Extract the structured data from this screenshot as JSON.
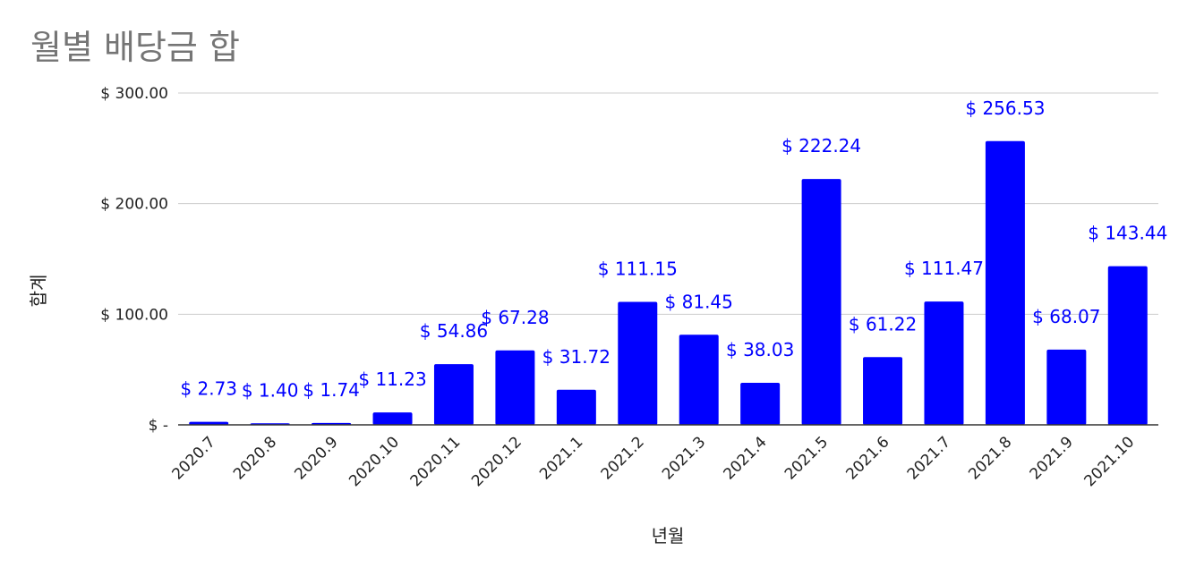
{
  "chart_data": {
    "type": "bar",
    "title": "월별 배당금 합",
    "xlabel": "년월",
    "ylabel": "합계",
    "categories": [
      "2020.7",
      "2020.8",
      "2020.9",
      "2020.10",
      "2020.11",
      "2020.12",
      "2021.1",
      "2021.2",
      "2021.3",
      "2021.4",
      "2021.5",
      "2021.6",
      "2021.7",
      "2021.8",
      "2021.9",
      "2021.10"
    ],
    "values": [
      2.73,
      1.4,
      1.74,
      11.23,
      54.86,
      67.28,
      31.72,
      111.15,
      81.45,
      38.03,
      222.24,
      61.22,
      111.47,
      256.53,
      68.07,
      143.44
    ],
    "data_labels": [
      "$ 2.73",
      "$ 1.40",
      "$ 1.74",
      "$ 11.23",
      "$ 54.86",
      "$ 67.28",
      "$ 31.72",
      "$ 111.15",
      "$ 81.45",
      "$ 38.03",
      "$ 222.24",
      "$ 61.22",
      "$ 111.47",
      "$ 256.53",
      "$ 68.07",
      "$ 143.44"
    ],
    "y_ticks": [
      0,
      100,
      200,
      300
    ],
    "y_tick_labels": [
      "$ -",
      "$ 100.00",
      "$ 200.00",
      "$ 300.00"
    ],
    "ylim": [
      0,
      300
    ],
    "grid": true,
    "legend": "none",
    "bar_color": "#0000ff",
    "label_color": "#0000ff",
    "gridline_color": "#cccccc"
  }
}
